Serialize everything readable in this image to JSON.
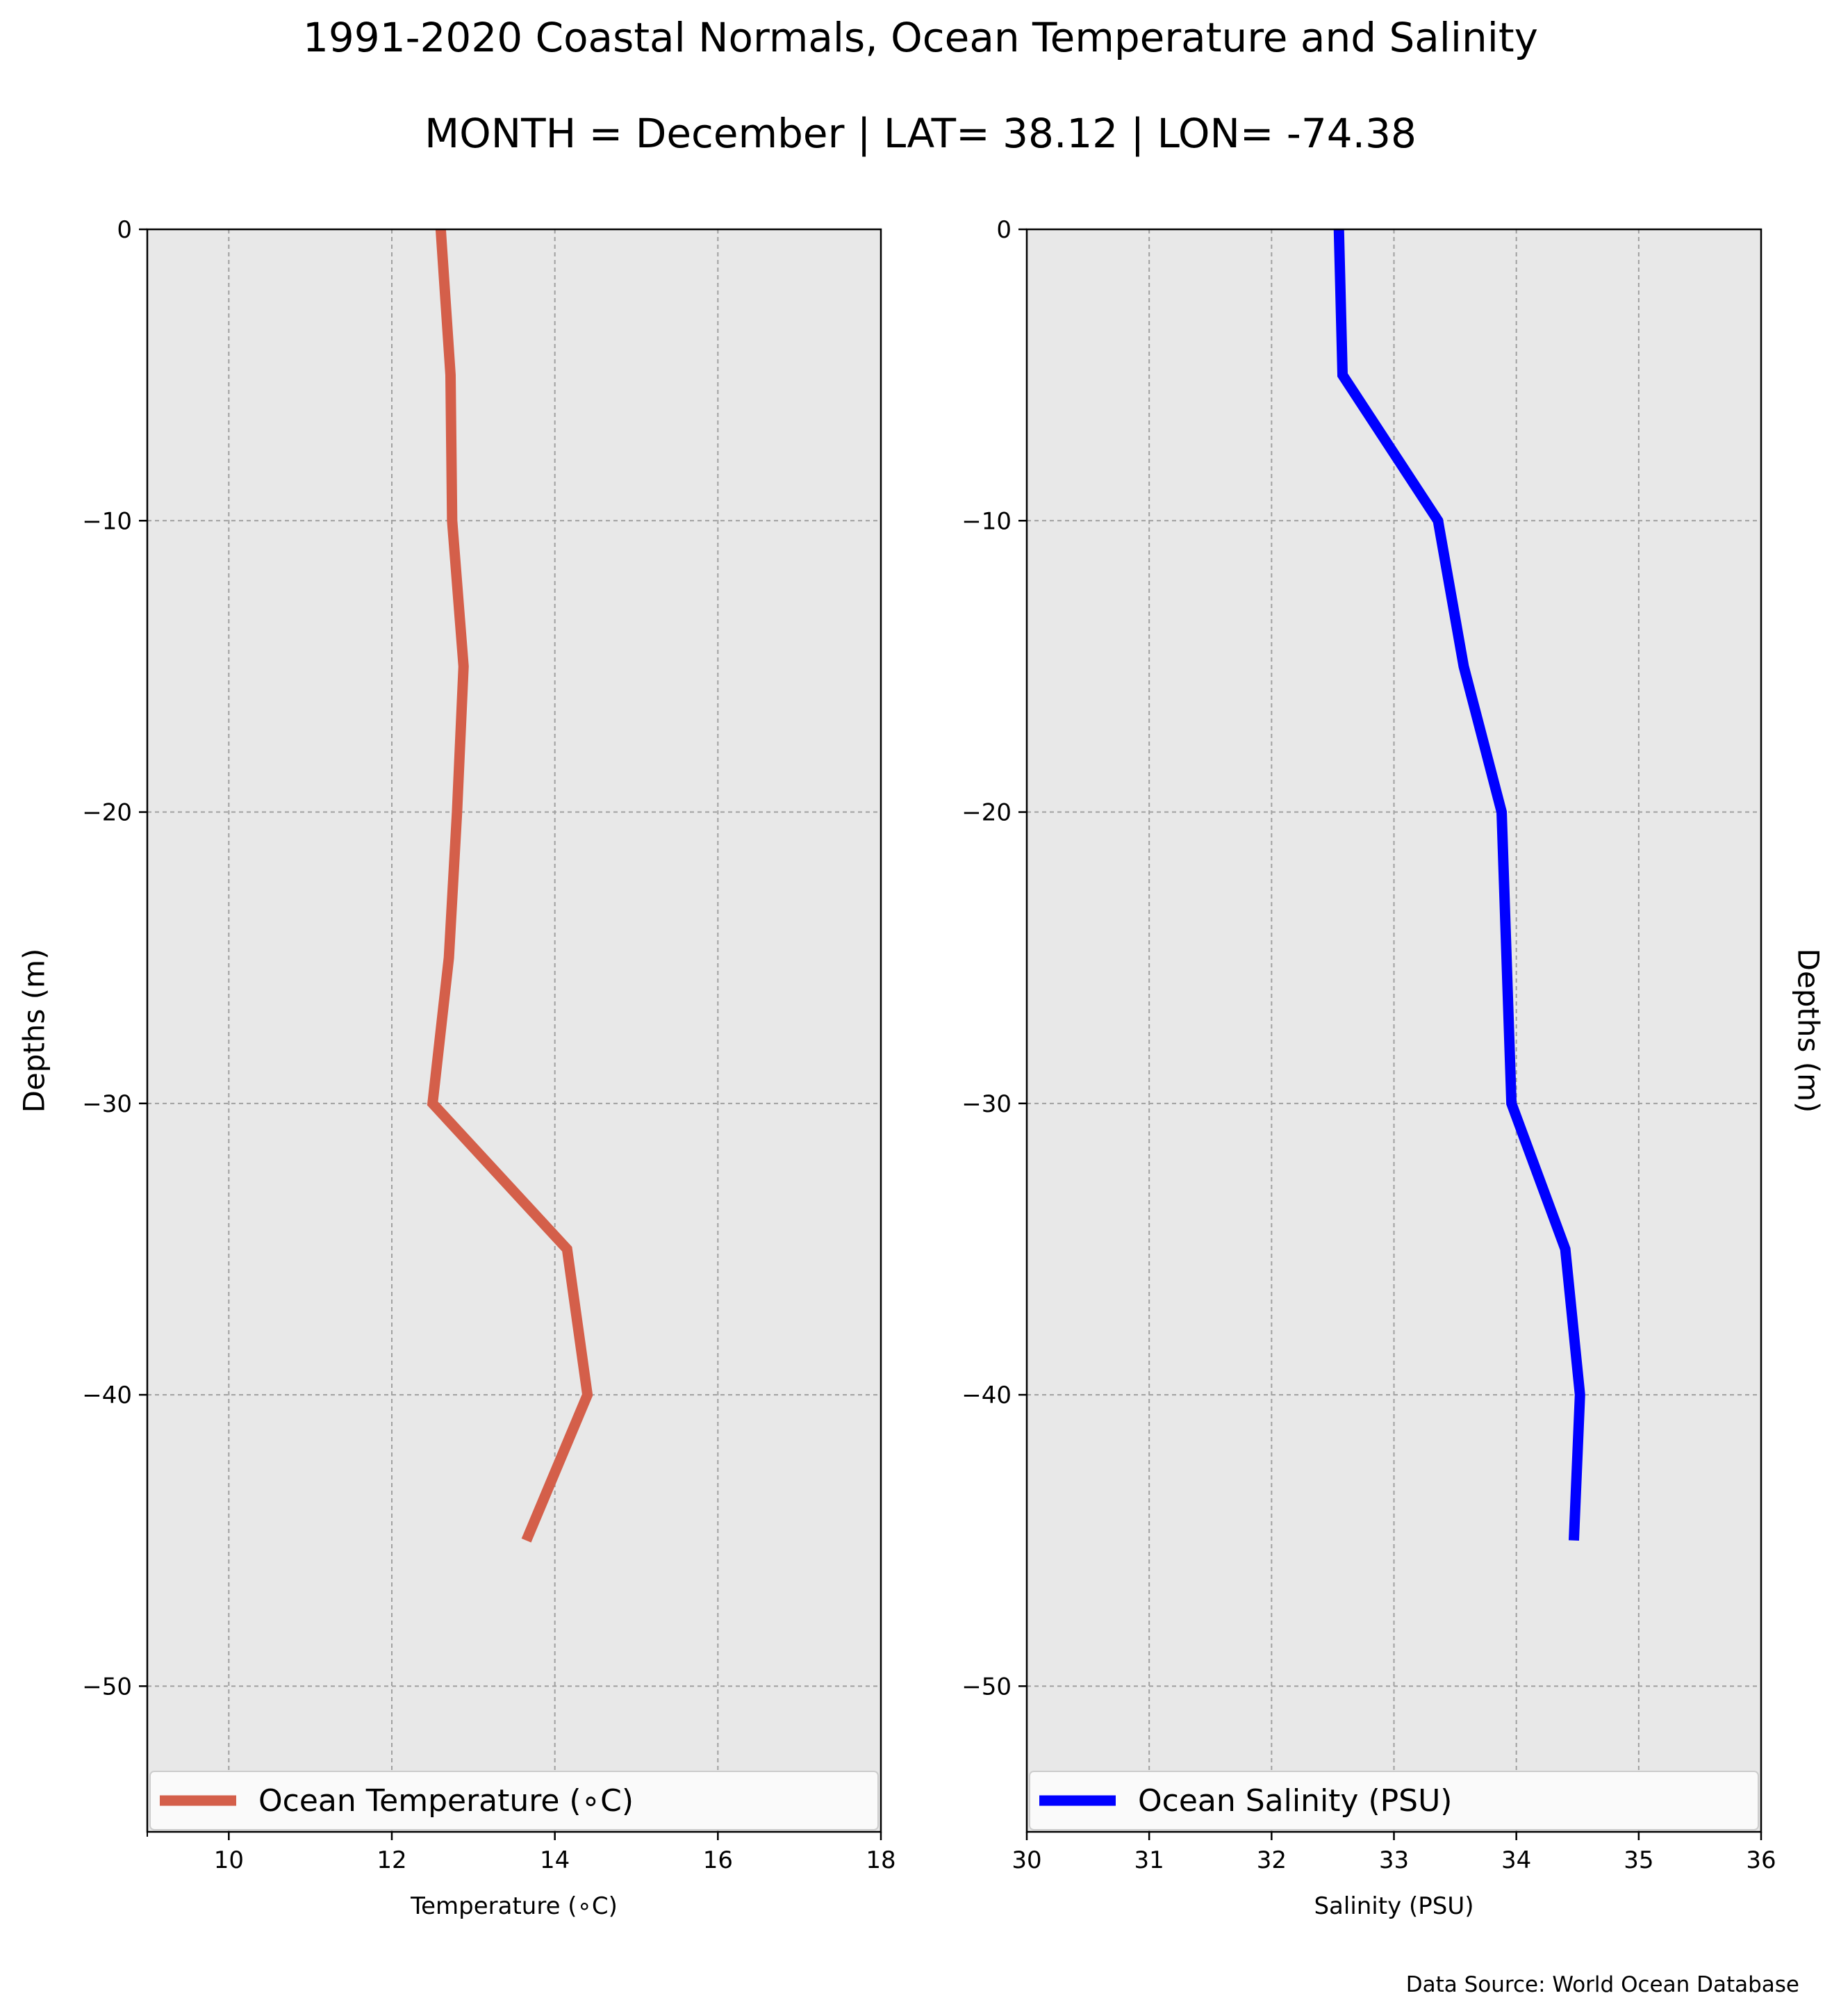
{
  "figure": {
    "title_line1": "1991-2020 Coastal Normals, Ocean Temperature and Salinity",
    "title_line2": "MONTH = December | LAT= 38.12 | LON= -74.38",
    "source": "Data Source: World Ocean Database"
  },
  "chart_data": [
    {
      "type": "line",
      "xlabel": "Temperature ($^\\circ$C)",
      "xlabel_display": "Temperature (∘C)",
      "ylabel": "Depths (m)",
      "ylabel_side": "left",
      "xlim": [
        9,
        18
      ],
      "ylim": [
        -55,
        0
      ],
      "xticks": [
        10,
        12,
        14,
        16,
        18
      ],
      "xtick_labels": [
        "10",
        "12",
        "14",
        "16",
        "18"
      ],
      "yticks": [
        0,
        -10,
        -20,
        -30,
        -40,
        -50
      ],
      "ytick_labels": [
        "0",
        "−10",
        "−20",
        "−30",
        "−40",
        "−50"
      ],
      "grid": true,
      "legend": "bottom",
      "series": [
        {
          "name": "Ocean Temperature (∘C)",
          "color": "#d45f4a",
          "depth": [
            0,
            -5,
            -10,
            -15,
            -20,
            -25,
            -30,
            -35,
            -40,
            -45
          ],
          "values": [
            12.6,
            12.72,
            12.74,
            12.88,
            12.8,
            12.7,
            12.5,
            14.15,
            14.4,
            13.65
          ]
        }
      ]
    },
    {
      "type": "line",
      "xlabel": "Salinity (PSU)",
      "ylabel": "Depths (m)",
      "ylabel_side": "right",
      "xlim": [
        30,
        36
      ],
      "ylim": [
        -55,
        0
      ],
      "xticks": [
        30,
        31,
        32,
        33,
        34,
        35,
        36
      ],
      "xtick_labels": [
        "30",
        "31",
        "32",
        "33",
        "34",
        "35",
        "36"
      ],
      "yticks": [
        0,
        -10,
        -20,
        -30,
        -40,
        -50
      ],
      "ytick_labels": [
        "0",
        "−10",
        "−20",
        "−30",
        "−40",
        "−50"
      ],
      "grid": true,
      "legend": "bottom",
      "series": [
        {
          "name": "Ocean Salinity (PSU)",
          "color": "#0000ff",
          "depth": [
            0,
            -5,
            -10,
            -15,
            -20,
            -25,
            -30,
            -35,
            -40,
            -45
          ],
          "values": [
            32.55,
            32.58,
            33.36,
            33.57,
            33.88,
            33.92,
            33.96,
            34.4,
            34.52,
            34.47
          ]
        }
      ]
    }
  ],
  "colors": {
    "plot_background": "#e8e8e8",
    "grid": "#a0a0a0",
    "legend_background": "#fafafa"
  }
}
